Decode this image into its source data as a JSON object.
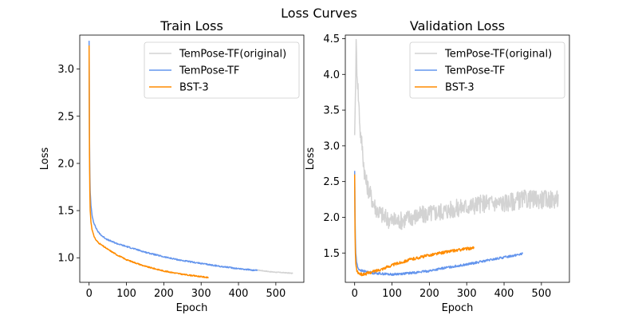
{
  "suptitle": "Loss Curves",
  "chart_data": [
    {
      "type": "line",
      "title": "Train Loss",
      "xlabel": "Epoch",
      "ylabel": "Loss",
      "xlim": [
        -25,
        575
      ],
      "ylim": [
        0.74,
        3.36
      ],
      "xticks": [
        0,
        100,
        200,
        300,
        400,
        500
      ],
      "yticks": [
        1.0,
        1.5,
        2.0,
        2.5,
        3.0
      ],
      "ytick_format": 1,
      "legend_position": "top-right",
      "series": [
        {
          "name": "TemPose-TF(original)",
          "color": "#d3d3d3",
          "x": [
            450,
            470,
            490,
            510,
            530,
            545
          ],
          "y": [
            0.87,
            0.86,
            0.85,
            0.845,
            0.84,
            0.835
          ],
          "noise": 0.004
        },
        {
          "name": "TemPose-TF",
          "color": "#6495ed",
          "x": [
            0,
            1,
            2,
            3,
            5,
            8,
            12,
            18,
            25,
            35,
            50,
            75,
            100,
            150,
            200,
            250,
            300,
            350,
            400,
            450
          ],
          "y": [
            3.3,
            2.3,
            1.9,
            1.7,
            1.55,
            1.45,
            1.38,
            1.32,
            1.27,
            1.23,
            1.19,
            1.15,
            1.12,
            1.06,
            1.01,
            0.97,
            0.94,
            0.91,
            0.885,
            0.865
          ],
          "noise": 0.007
        },
        {
          "name": "BST-3",
          "color": "#ff8c00",
          "x": [
            0,
            1,
            2,
            3,
            5,
            8,
            12,
            18,
            25,
            35,
            50,
            75,
            100,
            150,
            200,
            250,
            300,
            320
          ],
          "y": [
            3.25,
            2.1,
            1.7,
            1.5,
            1.38,
            1.3,
            1.24,
            1.19,
            1.16,
            1.13,
            1.09,
            1.03,
            0.98,
            0.91,
            0.86,
            0.825,
            0.8,
            0.79
          ],
          "noise": 0.006
        }
      ]
    },
    {
      "type": "line",
      "title": "Validation Loss",
      "xlabel": "Epoch",
      "ylabel": "Loss",
      "xlim": [
        -25,
        575
      ],
      "ylim": [
        1.09,
        4.55
      ],
      "xticks": [
        0,
        100,
        200,
        300,
        400,
        500
      ],
      "yticks": [
        1.5,
        2.0,
        2.5,
        3.0,
        3.5,
        4.0,
        4.5
      ],
      "ytick_format": 1,
      "legend_position": "top-right",
      "series": [
        {
          "name": "TemPose-TF(original)",
          "color": "#d3d3d3",
          "x": [
            0,
            2,
            4,
            6,
            8,
            10,
            12,
            15,
            20,
            25,
            30,
            40,
            50,
            60,
            80,
            100,
            120,
            150,
            200,
            250,
            300,
            350,
            400,
            450,
            500,
            545
          ],
          "y": [
            3.15,
            3.7,
            4.4,
            4.1,
            3.9,
            3.7,
            3.5,
            3.2,
            3.0,
            2.7,
            2.5,
            2.35,
            2.2,
            2.1,
            2.0,
            1.95,
            1.95,
            2.0,
            2.05,
            2.1,
            2.15,
            2.2,
            2.2,
            2.25,
            2.25,
            2.25
          ],
          "noise": 0.13
        },
        {
          "name": "TemPose-TF",
          "color": "#6495ed",
          "x": [
            0,
            1,
            2,
            3,
            5,
            8,
            12,
            20,
            30,
            50,
            75,
            100,
            150,
            200,
            250,
            300,
            350,
            400,
            450
          ],
          "y": [
            2.65,
            2.0,
            1.7,
            1.5,
            1.38,
            1.3,
            1.27,
            1.25,
            1.24,
            1.22,
            1.21,
            1.2,
            1.22,
            1.25,
            1.3,
            1.34,
            1.39,
            1.44,
            1.49
          ],
          "noise": 0.015
        },
        {
          "name": "BST-3",
          "color": "#ff8c00",
          "x": [
            0,
            1,
            2,
            3,
            5,
            8,
            12,
            20,
            30,
            50,
            75,
            100,
            150,
            200,
            250,
            300,
            320
          ],
          "y": [
            2.6,
            1.8,
            1.5,
            1.35,
            1.27,
            1.23,
            1.21,
            1.2,
            1.21,
            1.24,
            1.28,
            1.33,
            1.41,
            1.47,
            1.52,
            1.56,
            1.57
          ],
          "noise": 0.02
        }
      ]
    }
  ]
}
